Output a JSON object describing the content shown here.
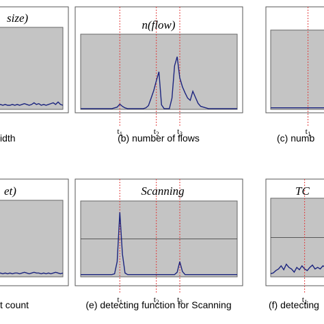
{
  "chart_data": [
    {
      "type": "line",
      "id": "a",
      "title": "size)",
      "caption": "idth",
      "ylim": [
        0,
        1
      ],
      "x": [
        0,
        1,
        2,
        3,
        4,
        5,
        6,
        7,
        8,
        9,
        10,
        11,
        12,
        13,
        14,
        15,
        16,
        17,
        18,
        19,
        20,
        21,
        22,
        23,
        24,
        25,
        26,
        27,
        28,
        29
      ],
      "series": [
        {
          "values": [
            0.05,
            0.06,
            0.05,
            0.06,
            0.05,
            0.06,
            0.05,
            0.05,
            0.06,
            0.05,
            0.06,
            0.05,
            0.06,
            0.07,
            0.06,
            0.05,
            0.06,
            0.08,
            0.06,
            0.07,
            0.05,
            0.06,
            0.05,
            0.06,
            0.07,
            0.08,
            0.06,
            0.09,
            0.06,
            0.05
          ],
          "color": "#1a237e"
        }
      ],
      "markers": [],
      "hline": null
    },
    {
      "type": "line",
      "id": "b",
      "title": "n(flow)",
      "caption": "(b) number of flows",
      "ylim": [
        0,
        1
      ],
      "x": [
        0,
        1,
        2,
        3,
        4,
        5,
        6,
        7,
        8,
        9,
        10,
        11,
        12,
        13,
        14,
        15,
        16,
        17,
        18,
        19,
        20,
        21,
        22,
        23,
        24,
        25,
        26,
        27,
        28,
        29,
        30,
        31,
        32,
        33,
        34,
        35,
        36,
        37,
        38,
        39,
        40,
        41,
        42,
        43,
        44,
        45,
        46,
        47,
        48,
        49,
        50,
        51,
        52,
        53,
        54,
        55,
        56,
        57,
        58,
        59,
        60
      ],
      "series": [
        {
          "values": [
            0.01,
            0.01,
            0.01,
            0.01,
            0.01,
            0.01,
            0.01,
            0.01,
            0.01,
            0.01,
            0.01,
            0.01,
            0.01,
            0.02,
            0.03,
            0.07,
            0.04,
            0.02,
            0.01,
            0.01,
            0.01,
            0.01,
            0.01,
            0.01,
            0.01,
            0.02,
            0.05,
            0.15,
            0.25,
            0.38,
            0.5,
            0.06,
            0.01,
            0.01,
            0.01,
            0.15,
            0.58,
            0.7,
            0.42,
            0.3,
            0.22,
            0.15,
            0.12,
            0.24,
            0.16,
            0.08,
            0.04,
            0.03,
            0.02,
            0.01,
            0.01,
            0.01,
            0.01,
            0.01,
            0.01,
            0.01,
            0.01,
            0.01,
            0.01,
            0.01,
            0.01
          ],
          "color": "#1a237e"
        }
      ],
      "markers": [
        {
          "label": "t",
          "sub": "1",
          "x": 15
        },
        {
          "label": "t",
          "sub": "2",
          "x": 29
        },
        {
          "label": "t",
          "sub": "3",
          "x": 38
        }
      ],
      "hline": null
    },
    {
      "type": "line",
      "id": "c",
      "title": "",
      "caption": "(c) numb",
      "ylim": [
        0,
        1
      ],
      "x": [
        0,
        1,
        2,
        3,
        4,
        5,
        6,
        7,
        8,
        9,
        10,
        11,
        12,
        13,
        14,
        15,
        16,
        17,
        18,
        19,
        20
      ],
      "series": [
        {
          "values": [
            0.02,
            0.02,
            0.02,
            0.02,
            0.02,
            0.02,
            0.02,
            0.02,
            0.02,
            0.02,
            0.02,
            0.02,
            0.02,
            0.02,
            0.02,
            0.02,
            0.02,
            0.02,
            0.02,
            0.02,
            0.02
          ],
          "color": "#1a237e"
        }
      ],
      "markers": [
        {
          "label": "t",
          "sub": "1",
          "x": 13
        }
      ],
      "hline": null
    },
    {
      "type": "line",
      "id": "d",
      "title": "et)",
      "caption": "t count",
      "ylim": [
        0,
        1
      ],
      "x": [
        0,
        1,
        2,
        3,
        4,
        5,
        6,
        7,
        8,
        9,
        10,
        11,
        12,
        13,
        14,
        15,
        16,
        17,
        18,
        19,
        20,
        21,
        22,
        23,
        24,
        25,
        26,
        27,
        28,
        29
      ],
      "series": [
        {
          "values": [
            0.04,
            0.05,
            0.04,
            0.05,
            0.04,
            0.05,
            0.04,
            0.05,
            0.04,
            0.05,
            0.05,
            0.04,
            0.05,
            0.06,
            0.05,
            0.04,
            0.05,
            0.06,
            0.05,
            0.05,
            0.04,
            0.05,
            0.04,
            0.05,
            0.04,
            0.05,
            0.06,
            0.05,
            0.04,
            0.05
          ],
          "color": "#1a237e"
        }
      ],
      "markers": [],
      "hline": null
    },
    {
      "type": "line",
      "id": "e",
      "title": "Scanning",
      "caption": "(e) detecting function for Scanning",
      "ylim": [
        0,
        1
      ],
      "x": [
        0,
        1,
        2,
        3,
        4,
        5,
        6,
        7,
        8,
        9,
        10,
        11,
        12,
        13,
        14,
        15,
        16,
        17,
        18,
        19,
        20,
        21,
        22,
        23,
        24,
        25,
        26,
        27,
        28,
        29,
        30,
        31,
        32,
        33,
        34,
        35,
        36,
        37,
        38,
        39,
        40,
        41,
        42,
        43,
        44,
        45,
        46,
        47,
        48,
        49,
        50,
        51,
        52,
        53,
        54,
        55,
        56,
        57,
        58,
        59,
        60
      ],
      "series": [
        {
          "values": [
            0.03,
            0.03,
            0.03,
            0.03,
            0.03,
            0.03,
            0.03,
            0.03,
            0.03,
            0.03,
            0.03,
            0.03,
            0.03,
            0.04,
            0.2,
            0.85,
            0.3,
            0.05,
            0.03,
            0.03,
            0.03,
            0.03,
            0.03,
            0.03,
            0.03,
            0.03,
            0.03,
            0.03,
            0.03,
            0.03,
            0.03,
            0.03,
            0.03,
            0.03,
            0.03,
            0.03,
            0.03,
            0.06,
            0.2,
            0.07,
            0.03,
            0.03,
            0.03,
            0.03,
            0.03,
            0.03,
            0.03,
            0.03,
            0.03,
            0.03,
            0.03,
            0.03,
            0.03,
            0.03,
            0.03,
            0.03,
            0.03,
            0.03,
            0.03,
            0.03,
            0.03
          ],
          "color": "#1a237e"
        }
      ],
      "markers": [
        {
          "label": "t",
          "sub": "1",
          "x": 15
        },
        {
          "label": "t",
          "sub": "2",
          "x": 29
        },
        {
          "label": "t",
          "sub": "3",
          "x": 38
        }
      ],
      "hline": 0.5
    },
    {
      "type": "line",
      "id": "f",
      "title": "TC",
      "caption": "(f) detecting",
      "ylim": [
        0,
        1
      ],
      "x": [
        0,
        1,
        2,
        3,
        4,
        5,
        6,
        7,
        8,
        9,
        10,
        11,
        12,
        13,
        14,
        15,
        16,
        17,
        18,
        19,
        20,
        21,
        22
      ],
      "series": [
        {
          "values": [
            0.04,
            0.05,
            0.08,
            0.1,
            0.14,
            0.09,
            0.16,
            0.12,
            0.1,
            0.06,
            0.12,
            0.09,
            0.14,
            0.1,
            0.08,
            0.12,
            0.15,
            0.1,
            0.12,
            0.1,
            0.14,
            0.12,
            0.13
          ],
          "color": "#1a237e"
        }
      ],
      "markers": [
        {
          "label": "t",
          "sub": "1",
          "x": 13
        }
      ],
      "hline": 0.5
    }
  ]
}
